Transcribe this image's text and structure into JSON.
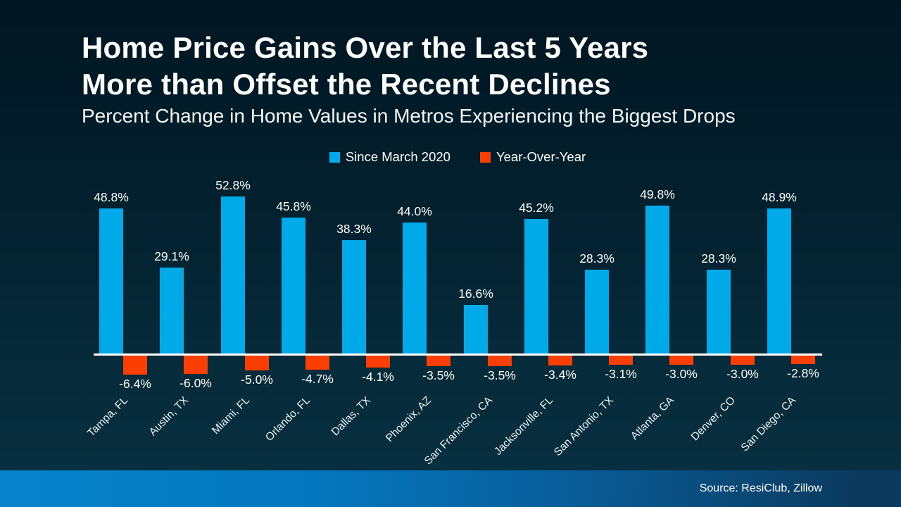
{
  "header": {
    "title_lines": [
      "Home Price Gains Over the Last 5 Years",
      "More than Offset the Recent Declines"
    ],
    "subtitle": "Percent Change in Home Values in Metros Experiencing the Biggest Drops"
  },
  "legend": {
    "items": [
      {
        "label": "Since March 2020",
        "color": "#00A9E8"
      },
      {
        "label": "Year-Over-Year",
        "color": "#FB3F03"
      }
    ]
  },
  "chart_data": {
    "type": "bar",
    "title": "Home Price Gains Over the Last 5 Years More than Offset the Recent Declines",
    "subtitle": "Percent Change in Home Values in Metros Experiencing the Biggest Drops",
    "categories": [
      "Tampa, FL",
      "Austin, TX",
      "Miami, FL",
      "Orlando, FL",
      "Dallas, TX",
      "Phoenix, AZ",
      "San Francisco, CA",
      "Jacksonville, FL",
      "San Antonio, TX",
      "Atlanta, GA",
      "Denver, CO",
      "San Diego, CA"
    ],
    "series": [
      {
        "name": "Since March 2020",
        "color": "#00A9E8",
        "values": [
          48.8,
          29.1,
          52.8,
          45.8,
          38.3,
          44.0,
          16.6,
          45.2,
          28.3,
          49.8,
          28.3,
          48.9
        ]
      },
      {
        "name": "Year-Over-Year",
        "color": "#FB3F03",
        "values": [
          -6.4,
          -6.0,
          -5.0,
          -4.7,
          -4.1,
          -3.5,
          -3.5,
          -3.4,
          -3.1,
          -3.0,
          -3.0,
          -2.8
        ]
      }
    ],
    "value_suffix": "%",
    "xlabel": "",
    "ylabel": "",
    "ylim": [
      -8,
      56
    ],
    "grid": false,
    "y_axis_visible": false,
    "baseline_color": "#FFFFFF",
    "legend_position": "top",
    "value_labels": "all bars, one decimal place with % suffix",
    "category_label_rotation_deg": 45
  },
  "footer": {
    "source": "Source: ResiClub, Zillow",
    "bar_colors": [
      "#0683CB",
      "#0B3A5E"
    ]
  }
}
